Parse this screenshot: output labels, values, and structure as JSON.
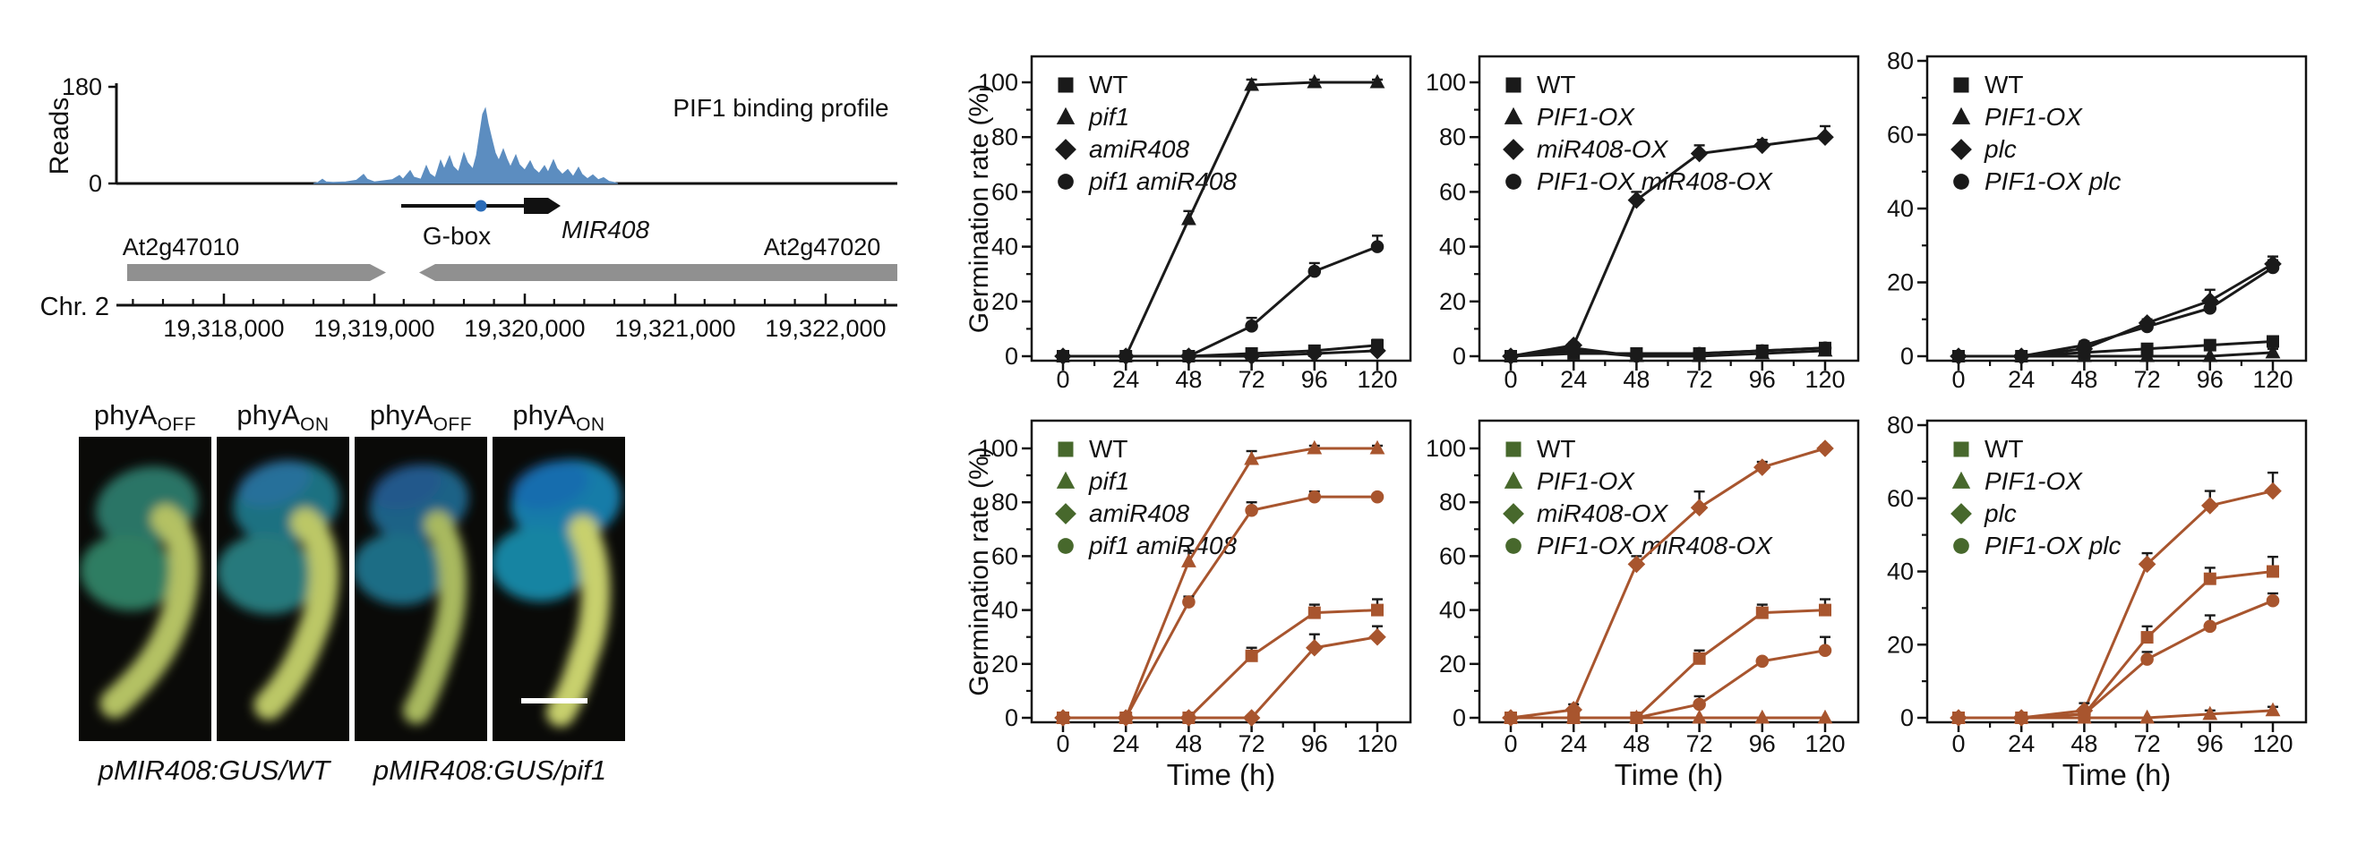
{
  "genome_panel": {
    "ylabel": "Reads",
    "ymax_label": "180",
    "ymin_label": "0",
    "title": "PIF1 binding profile",
    "gbox_label": "G-box",
    "gene_label": "MIR408",
    "left_gene_label": "At2g47010",
    "right_gene_label": "At2g47020",
    "chrom_label": "Chr. 2",
    "ruler_labels": [
      "19,318,000",
      "19,319,000",
      "19,320,000",
      "19,321,000",
      "19,322,000"
    ],
    "profile_color": "#5c8dc0",
    "gbox_dot_color": "#2b6cb8",
    "gene_box_color": "#909090",
    "profile_points": [
      [
        5,
        2
      ],
      [
        10,
        8
      ],
      [
        14,
        3
      ],
      [
        22,
        2
      ],
      [
        36,
        3
      ],
      [
        48,
        6
      ],
      [
        56,
        17
      ],
      [
        60,
        8
      ],
      [
        68,
        3
      ],
      [
        78,
        5
      ],
      [
        88,
        7
      ],
      [
        96,
        15
      ],
      [
        100,
        8
      ],
      [
        108,
        24
      ],
      [
        112,
        12
      ],
      [
        120,
        8
      ],
      [
        126,
        33
      ],
      [
        130,
        18
      ],
      [
        136,
        11
      ],
      [
        142,
        43
      ],
      [
        146,
        27
      ],
      [
        152,
        51
      ],
      [
        156,
        32
      ],
      [
        162,
        22
      ],
      [
        168,
        57
      ],
      [
        172,
        39
      ],
      [
        178,
        27
      ],
      [
        182,
        52
      ],
      [
        186,
        96
      ],
      [
        189,
        129
      ],
      [
        192,
        140
      ],
      [
        195,
        112
      ],
      [
        199,
        84
      ],
      [
        203,
        57
      ],
      [
        207,
        43
      ],
      [
        212,
        64
      ],
      [
        216,
        46
      ],
      [
        220,
        31
      ],
      [
        226,
        53
      ],
      [
        230,
        35
      ],
      [
        236,
        25
      ],
      [
        242,
        42
      ],
      [
        246,
        28
      ],
      [
        252,
        19
      ],
      [
        258,
        33
      ],
      [
        262,
        21
      ],
      [
        268,
        44
      ],
      [
        272,
        28
      ],
      [
        278,
        17
      ],
      [
        284,
        26
      ],
      [
        290,
        13
      ],
      [
        296,
        30
      ],
      [
        300,
        17
      ],
      [
        306,
        9
      ],
      [
        312,
        16
      ],
      [
        318,
        7
      ],
      [
        324,
        11
      ],
      [
        330,
        4
      ],
      [
        336,
        2
      ]
    ]
  },
  "photos": {
    "labels": [
      {
        "base": "phyA",
        "sub": "OFF"
      },
      {
        "base": "phyA",
        "sub": "ON"
      },
      {
        "base": "phyA",
        "sub": "OFF"
      },
      {
        "base": "phyA",
        "sub": "ON"
      }
    ],
    "captions": [
      "pMIR408:GUS/WT",
      "pMIR408:GUS/pif1"
    ]
  },
  "chart_data": [
    {
      "type": "line",
      "position": "top-left",
      "x": [
        0,
        24,
        48,
        72,
        96,
        120
      ],
      "ylim": [
        0,
        100
      ],
      "yticks": [
        0,
        20,
        40,
        60,
        80,
        100
      ],
      "ylabel": "Germination rate (%)",
      "xlabel": "",
      "line_color": "#1a1a1a",
      "legend_marker_color": "#1a1a1a",
      "series": [
        {
          "name": "WT",
          "marker": "square",
          "italic": false,
          "values": [
            0,
            0,
            0,
            1,
            2,
            4
          ],
          "errors": [
            0,
            0,
            0,
            0,
            0,
            2
          ]
        },
        {
          "name": "pif1",
          "marker": "triangle",
          "italic": true,
          "values": [
            0,
            0,
            50,
            99,
            100,
            100
          ],
          "errors": [
            0,
            0,
            3,
            2,
            1,
            1
          ]
        },
        {
          "name": "amiR408",
          "marker": "diamond",
          "italic": true,
          "values": [
            0,
            0,
            0,
            0,
            1,
            2
          ],
          "errors": [
            0,
            0,
            0,
            0,
            0,
            1
          ]
        },
        {
          "name": "pif1 amiR408",
          "marker": "circle",
          "italic": true,
          "values": [
            0,
            0,
            0,
            11,
            31,
            40
          ],
          "errors": [
            0,
            0,
            0,
            3,
            3,
            4
          ]
        }
      ]
    },
    {
      "type": "line",
      "position": "top-middle",
      "x": [
        0,
        24,
        48,
        72,
        96,
        120
      ],
      "ylim": [
        0,
        100
      ],
      "yticks": [
        0,
        20,
        40,
        60,
        80,
        100
      ],
      "ylabel": "",
      "xlabel": "",
      "line_color": "#1a1a1a",
      "legend_marker_color": "#1a1a1a",
      "series": [
        {
          "name": "WT",
          "marker": "square",
          "italic": false,
          "values": [
            0,
            1,
            1,
            1,
            2,
            3
          ],
          "errors": [
            0,
            0,
            0,
            0,
            1,
            1
          ]
        },
        {
          "name": "PIF1-OX",
          "marker": "triangle",
          "italic": true,
          "values": [
            0,
            3,
            0,
            0,
            1,
            2
          ],
          "errors": [
            0,
            1,
            0,
            0,
            0,
            1
          ]
        },
        {
          "name": "miR408-OX",
          "marker": "diamond",
          "italic": true,
          "values": [
            0,
            4,
            57,
            74,
            77,
            80
          ],
          "errors": [
            0,
            1,
            3,
            3,
            2,
            4
          ]
        },
        {
          "name": "PIF1-OX miR408-OX",
          "marker": "circle",
          "italic": true,
          "values": [
            0,
            2,
            0,
            1,
            2,
            3
          ],
          "errors": [
            0,
            1,
            0,
            0,
            1,
            1
          ]
        }
      ]
    },
    {
      "type": "line",
      "position": "top-right",
      "x": [
        0,
        24,
        48,
        72,
        96,
        120
      ],
      "ylim": [
        0,
        80
      ],
      "yticks": [
        0,
        20,
        40,
        60,
        80
      ],
      "ylabel": "",
      "xlabel": "",
      "line_color": "#1a1a1a",
      "legend_marker_color": "#1a1a1a",
      "series": [
        {
          "name": "WT",
          "marker": "square",
          "italic": false,
          "values": [
            0,
            0,
            1,
            2,
            3,
            4
          ],
          "errors": [
            0,
            0,
            0,
            1,
            1,
            1
          ]
        },
        {
          "name": "PIF1-OX",
          "marker": "triangle",
          "italic": true,
          "values": [
            0,
            0,
            0,
            0,
            0,
            1
          ],
          "errors": [
            0,
            0,
            0,
            0,
            0,
            1
          ]
        },
        {
          "name": "plc",
          "marker": "diamond",
          "italic": true,
          "values": [
            0,
            0,
            2,
            9,
            15,
            25
          ],
          "errors": [
            0,
            0,
            1,
            1,
            3,
            2
          ]
        },
        {
          "name": "PIF1-OX plc",
          "marker": "circle",
          "italic": true,
          "values": [
            0,
            0,
            3,
            8,
            13,
            24
          ],
          "errors": [
            0,
            0,
            1,
            1,
            2,
            2
          ]
        }
      ]
    },
    {
      "type": "line",
      "position": "bottom-left",
      "x": [
        0,
        24,
        48,
        72,
        96,
        120
      ],
      "ylim": [
        0,
        100
      ],
      "yticks": [
        0,
        20,
        40,
        60,
        80,
        100
      ],
      "ylabel": "Germination rate (%)",
      "xlabel": "Time (h)",
      "line_color": "#a8552e",
      "legend_marker_color": "#47682c",
      "series": [
        {
          "name": "WT",
          "marker": "square",
          "italic": false,
          "values": [
            0,
            0,
            0,
            23,
            39,
            40
          ],
          "errors": [
            0,
            0,
            0,
            3,
            3,
            4
          ]
        },
        {
          "name": "pif1",
          "marker": "triangle",
          "italic": true,
          "values": [
            0,
            0,
            58,
            96,
            100,
            100
          ],
          "errors": [
            0,
            0,
            4,
            3,
            1,
            1
          ]
        },
        {
          "name": "amiR408",
          "marker": "diamond",
          "italic": true,
          "values": [
            0,
            0,
            0,
            0,
            26,
            30
          ],
          "errors": [
            0,
            0,
            0,
            0,
            5,
            4
          ]
        },
        {
          "name": "pif1 amiR408",
          "marker": "circle",
          "italic": true,
          "values": [
            0,
            0,
            43,
            77,
            82,
            82
          ],
          "errors": [
            0,
            0,
            2,
            3,
            2,
            1
          ]
        }
      ]
    },
    {
      "type": "line",
      "position": "bottom-middle",
      "x": [
        0,
        24,
        48,
        72,
        96,
        120
      ],
      "ylim": [
        0,
        100
      ],
      "yticks": [
        0,
        20,
        40,
        60,
        80,
        100
      ],
      "ylabel": "",
      "xlabel": "Time (h)",
      "line_color": "#a8552e",
      "legend_marker_color": "#47682c",
      "series": [
        {
          "name": "WT",
          "marker": "square",
          "italic": false,
          "values": [
            0,
            0,
            0,
            22,
            39,
            40
          ],
          "errors": [
            0,
            0,
            0,
            3,
            3,
            4
          ]
        },
        {
          "name": "PIF1-OX",
          "marker": "triangle",
          "italic": true,
          "values": [
            0,
            0,
            0,
            0,
            0,
            0
          ],
          "errors": [
            0,
            0,
            0,
            0,
            0,
            0
          ]
        },
        {
          "name": "miR408-OX",
          "marker": "diamond",
          "italic": true,
          "values": [
            0,
            3,
            57,
            78,
            93,
            100
          ],
          "errors": [
            0,
            2,
            3,
            6,
            2,
            1
          ]
        },
        {
          "name": "PIF1-OX miR408-OX",
          "marker": "circle",
          "italic": true,
          "values": [
            0,
            0,
            0,
            5,
            21,
            25
          ],
          "errors": [
            0,
            0,
            0,
            3,
            1,
            5
          ]
        }
      ]
    },
    {
      "type": "line",
      "position": "bottom-right",
      "x": [
        0,
        24,
        48,
        72,
        96,
        120
      ],
      "ylim": [
        0,
        80
      ],
      "yticks": [
        0,
        20,
        40,
        60,
        80
      ],
      "ylabel": "",
      "xlabel": "Time (h)",
      "line_color": "#a8552e",
      "legend_marker_color": "#47682c",
      "series": [
        {
          "name": "WT",
          "marker": "square",
          "italic": false,
          "values": [
            0,
            0,
            1,
            22,
            38,
            40
          ],
          "errors": [
            0,
            0,
            1,
            3,
            3,
            4
          ]
        },
        {
          "name": "PIF1-OX",
          "marker": "triangle",
          "italic": true,
          "values": [
            0,
            0,
            0,
            0,
            1,
            2
          ],
          "errors": [
            0,
            0,
            0,
            0,
            1,
            1
          ]
        },
        {
          "name": "plc",
          "marker": "diamond",
          "italic": true,
          "values": [
            0,
            0,
            2,
            42,
            58,
            62
          ],
          "errors": [
            0,
            0,
            2,
            3,
            4,
            5
          ]
        },
        {
          "name": "PIF1-OX plc",
          "marker": "circle",
          "italic": true,
          "values": [
            0,
            0,
            1,
            16,
            25,
            32
          ],
          "errors": [
            0,
            0,
            1,
            2,
            3,
            2
          ]
        }
      ]
    }
  ]
}
